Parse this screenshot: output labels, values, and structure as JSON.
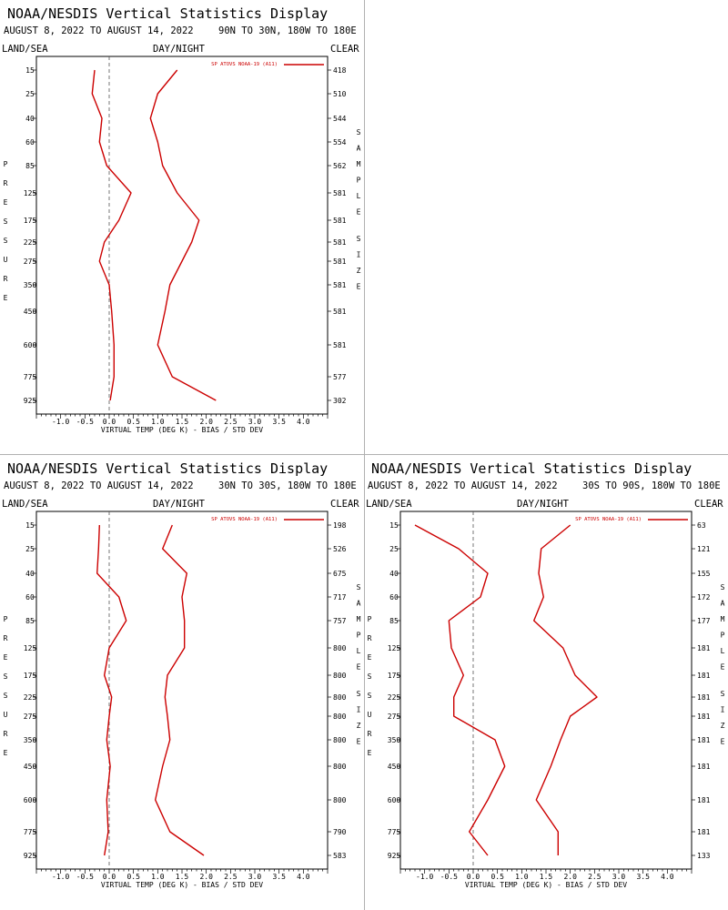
{
  "chart_data": [
    {
      "type": "line",
      "title": "NOAA/NESDIS Vertical Statistics Display",
      "date_range": "AUGUST 8, 2022 TO AUGUST 14, 2022",
      "region": "90N TO 30N, 180W TO 180E",
      "corner_labels": {
        "left": "LAND/SEA",
        "center": "DAY/NIGHT",
        "right": "CLEAR"
      },
      "xlabel": "VIRTUAL TEMP (DEG K) - BIAS / STD DEV",
      "ylabel": "PRESSURE",
      "y2label": "SAMPLE SIZE",
      "xlim": [
        -1.5,
        4.5
      ],
      "xticks": [
        "-1.0",
        "-0.5",
        "0.0",
        "0.5",
        "1.0",
        "1.5",
        "2.0",
        "2.5",
        "3.0",
        "3.5",
        "4.0"
      ],
      "pressure_levels": [
        "15",
        "25",
        "40",
        "60",
        "85",
        "125",
        "175",
        "225",
        "275",
        "350",
        "450",
        "600",
        "775",
        "925"
      ],
      "sample_sizes": [
        "418",
        "510",
        "544",
        "554",
        "562",
        "581",
        "581",
        "581",
        "581",
        "581",
        "581",
        "581",
        "577",
        "302"
      ],
      "legend": "SP ATOVS NOAA-19 (A11)",
      "color": "#cc0000",
      "series": [
        {
          "role": "bias",
          "values": [
            -0.3,
            -0.35,
            -0.15,
            -0.2,
            -0.05,
            0.45,
            0.2,
            -0.1,
            -0.2,
            0.0,
            0.05,
            0.1,
            0.1,
            0.02
          ]
        },
        {
          "role": "std_dev",
          "values": [
            1.4,
            1.0,
            0.85,
            1.0,
            1.1,
            1.4,
            1.85,
            1.7,
            1.5,
            1.25,
            1.15,
            1.0,
            1.3,
            2.2
          ]
        }
      ]
    },
    {
      "type": "line",
      "title": "NOAA/NESDIS Vertical Statistics Display",
      "date_range": "AUGUST 8, 2022 TO AUGUST 14, 2022",
      "region": "30N TO 30S, 180W TO 180E",
      "corner_labels": {
        "left": "LAND/SEA",
        "center": "DAY/NIGHT",
        "right": "CLEAR"
      },
      "xlabel": "VIRTUAL TEMP (DEG K) - BIAS / STD DEV",
      "ylabel": "PRESSURE",
      "y2label": "SAMPLE SIZE",
      "xlim": [
        -1.5,
        4.5
      ],
      "xticks": [
        "-1.0",
        "-0.5",
        "0.0",
        "0.5",
        "1.0",
        "1.5",
        "2.0",
        "2.5",
        "3.0",
        "3.5",
        "4.0"
      ],
      "pressure_levels": [
        "15",
        "25",
        "40",
        "60",
        "85",
        "125",
        "175",
        "225",
        "275",
        "350",
        "450",
        "600",
        "775",
        "925"
      ],
      "sample_sizes": [
        "198",
        "526",
        "675",
        "717",
        "757",
        "800",
        "800",
        "800",
        "800",
        "800",
        "800",
        "800",
        "790",
        "583"
      ],
      "legend": "SP ATOVS NOAA-19 (A11)",
      "color": "#cc0000",
      "series": [
        {
          "role": "bias",
          "values": [
            -0.2,
            -0.22,
            -0.25,
            0.2,
            0.35,
            0.0,
            -0.1,
            0.05,
            0.0,
            -0.05,
            0.02,
            -0.05,
            -0.02,
            -0.1
          ]
        },
        {
          "role": "std_dev",
          "values": [
            1.3,
            1.1,
            1.6,
            1.5,
            1.55,
            1.55,
            1.2,
            1.15,
            1.2,
            1.25,
            1.1,
            0.95,
            1.25,
            1.95
          ]
        }
      ]
    },
    {
      "type": "line",
      "title": "NOAA/NESDIS Vertical Statistics Display",
      "date_range": "AUGUST 8, 2022 TO AUGUST 14, 2022",
      "region": "30S TO 90S, 180W TO 180E",
      "corner_labels": {
        "left": "LAND/SEA",
        "center": "DAY/NIGHT",
        "right": "CLEAR"
      },
      "xlabel": "VIRTUAL TEMP (DEG K) - BIAS / STD DEV",
      "ylabel": "PRESSURE",
      "y2label": "SAMPLE SIZE",
      "xlim": [
        -1.5,
        4.5
      ],
      "xticks": [
        "-1.0",
        "-0.5",
        "0.0",
        "0.5",
        "1.0",
        "1.5",
        "2.0",
        "2.5",
        "3.0",
        "3.5",
        "4.0"
      ],
      "pressure_levels": [
        "15",
        "25",
        "40",
        "60",
        "85",
        "125",
        "175",
        "225",
        "275",
        "350",
        "450",
        "600",
        "775",
        "925"
      ],
      "sample_sizes": [
        "63",
        "121",
        "155",
        "172",
        "177",
        "181",
        "181",
        "181",
        "181",
        "181",
        "181",
        "181",
        "181",
        "133"
      ],
      "legend": "SP ATOVS NOAA-19 (A11)",
      "color": "#cc0000",
      "series": [
        {
          "role": "bias",
          "values": [
            -1.2,
            -0.3,
            0.3,
            0.15,
            -0.5,
            -0.45,
            -0.2,
            -0.4,
            -0.4,
            0.45,
            0.65,
            0.3,
            -0.08,
            0.3
          ]
        },
        {
          "role": "std_dev",
          "values": [
            2.0,
            1.4,
            1.35,
            1.45,
            1.25,
            1.85,
            2.1,
            2.55,
            2.0,
            1.8,
            1.6,
            1.3,
            1.75,
            1.75
          ]
        }
      ]
    }
  ]
}
